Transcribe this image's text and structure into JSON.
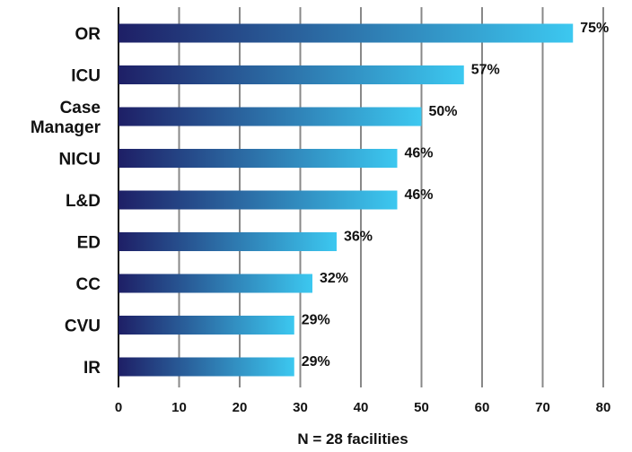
{
  "chart_data": {
    "type": "bar",
    "orientation": "horizontal",
    "categories": [
      [
        "OR"
      ],
      [
        "ICU"
      ],
      [
        "Case",
        "Manager"
      ],
      [
        "NICU"
      ],
      [
        "L&D"
      ],
      [
        "ED"
      ],
      [
        "CC"
      ],
      [
        "CVU"
      ],
      [
        "IR"
      ]
    ],
    "values": [
      75,
      57,
      50,
      46,
      46,
      36,
      32,
      29,
      29
    ],
    "value_labels": [
      "75%",
      "57%",
      "50%",
      "46%",
      "46%",
      "36%",
      "32%",
      "29%",
      "29%"
    ],
    "x_ticks": [
      0,
      10,
      20,
      30,
      40,
      50,
      60,
      70,
      80
    ],
    "xlim": [
      0,
      80
    ],
    "xlabel": "N = 28 facilities",
    "grid": true,
    "bar_gradient": [
      "#1e1f66",
      "#3cc8f0"
    ]
  }
}
